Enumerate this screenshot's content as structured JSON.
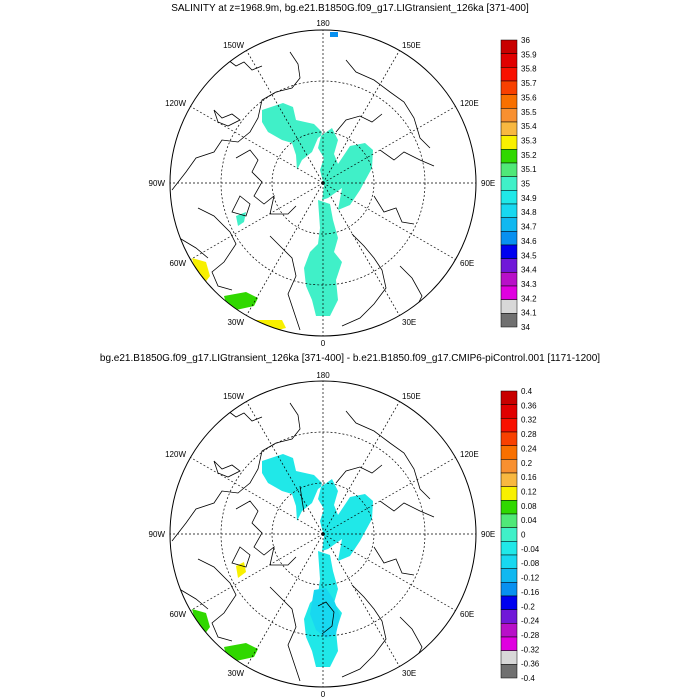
{
  "panels": [
    {
      "title": "SALINITY at z=1968.9m, bg.e21.B1850G.f09_g17.LIGtransient_126ka [371-400]",
      "lon_labels": [
        "180",
        "150E",
        "120E",
        "90E",
        "60E",
        "30E",
        "0",
        "30W",
        "60W",
        "90W",
        "120W",
        "150W"
      ],
      "colorbar": {
        "labels": [
          "36",
          "35.9",
          "35.8",
          "35.7",
          "35.6",
          "35.5",
          "35.4",
          "35.3",
          "35.2",
          "35.1",
          "35",
          "34.9",
          "34.8",
          "34.7",
          "34.6",
          "34.5",
          "34.4",
          "34.3",
          "34.2",
          "34.1",
          "34"
        ],
        "colors": [
          "#c80000",
          "#e00000",
          "#f81000",
          "#f84000",
          "#f87000",
          "#f89030",
          "#f8b840",
          "#f8f000",
          "#30d800",
          "#50e878",
          "#40f0c8",
          "#20e8e8",
          "#18d8f0",
          "#10b8f0",
          "#0890f0",
          "#0000f0",
          "#7018d8",
          "#b810c8",
          "#e000e0",
          "#d8d8d8",
          "#707070"
        ]
      }
    },
    {
      "title": "bg.e21.B1850G.f09_g17.LIGtransient_126ka [371-400] - b.e21.B1850.f09_g17.CMIP6-piControl.001 [1171-1200]",
      "lon_labels": [
        "180",
        "150E",
        "120E",
        "90E",
        "60E",
        "30E",
        "0",
        "30W",
        "60W",
        "90W",
        "120W",
        "150W"
      ],
      "colorbar": {
        "labels": [
          "0.4",
          "0.36",
          "0.32",
          "0.28",
          "0.24",
          "0.2",
          "0.16",
          "0.12",
          "0.08",
          "0.04",
          "0",
          "-0.04",
          "-0.08",
          "-0.12",
          "-0.16",
          "-0.2",
          "-0.24",
          "-0.28",
          "-0.32",
          "-0.36",
          "-0.4"
        ],
        "colors": [
          "#c80000",
          "#e00000",
          "#f81000",
          "#f84000",
          "#f87000",
          "#f89030",
          "#f8b840",
          "#f8f000",
          "#30d800",
          "#50e878",
          "#40f0c8",
          "#20e8e8",
          "#18d8f0",
          "#10b8f0",
          "#0890f0",
          "#0000f0",
          "#7018d8",
          "#b810c8",
          "#e000e0",
          "#d8d8d8",
          "#707070"
        ]
      }
    }
  ]
}
